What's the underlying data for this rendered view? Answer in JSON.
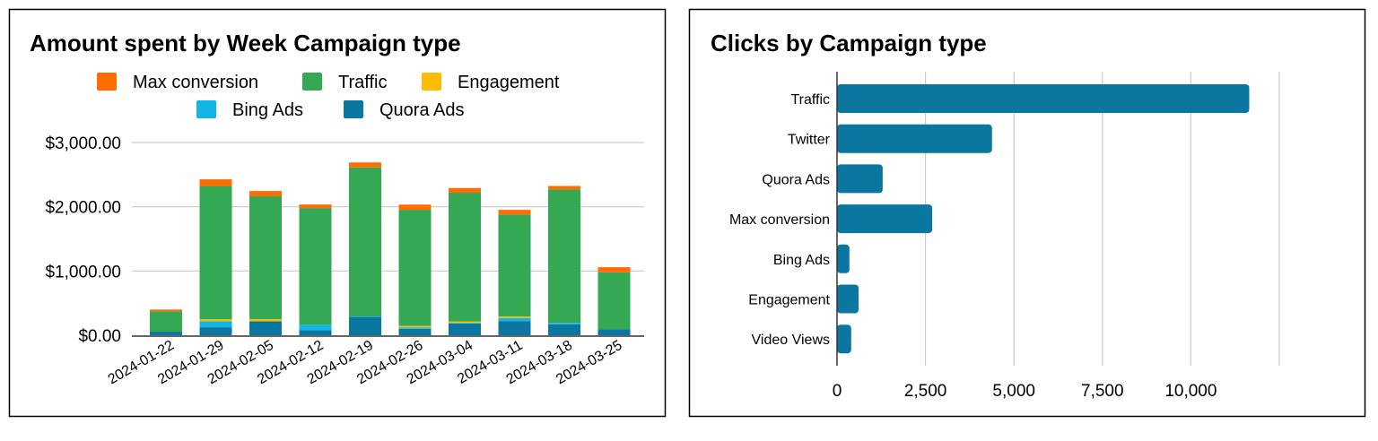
{
  "chart_data": [
    {
      "type": "bar",
      "stacked": true,
      "title": "Amount spent by Week Campaign type",
      "categories": [
        "2024-01-22",
        "2024-01-29",
        "2024-02-05",
        "2024-02-12",
        "2024-02-19",
        "2024-02-26",
        "2024-03-04",
        "2024-03-11",
        "2024-03-18",
        "2024-03-25"
      ],
      "yticks": [
        "$0.00",
        "$1,000.00",
        "$2,000.00",
        "$3,000.00"
      ],
      "ylim": [
        0,
        3000
      ],
      "grid": true,
      "legend_position": "top",
      "series": [
        {
          "name": "Quora Ads",
          "color": "#0b76a0",
          "values": [
            55,
            124,
            216,
            78,
            285,
            100,
            183,
            216,
            170,
            92
          ]
        },
        {
          "name": "Bing Ads",
          "color": "#12b5e6",
          "values": [
            0,
            92,
            0,
            87,
            8,
            23,
            9,
            54,
            22,
            0
          ]
        },
        {
          "name": "Engagement",
          "color": "#fbbc04",
          "values": [
            0,
            32,
            36,
            0,
            0,
            24,
            24,
            23,
            0,
            0
          ]
        },
        {
          "name": "Traffic",
          "color": "#34a853",
          "values": [
            316,
            2076,
            1911,
            1815,
            2319,
            1805,
            2002,
            1587,
            2077,
            888
          ]
        },
        {
          "name": "Max conversion",
          "color": "#ff6d01",
          "values": [
            29,
            103,
            82,
            55,
            78,
            82,
            74,
            72,
            55,
            79
          ]
        }
      ],
      "legend_order": [
        "Max conversion",
        "Traffic",
        "Engagement",
        "Bing Ads",
        "Quora Ads"
      ]
    },
    {
      "type": "bar",
      "orientation": "horizontal",
      "title": "Clicks by Campaign type",
      "categories": [
        "Traffic",
        "Twitter",
        "Quora Ads",
        "Max conversion",
        "Bing Ads",
        "Engagement",
        "Video Views"
      ],
      "values": [
        11650,
        4380,
        1290,
        2690,
        350,
        610,
        400
      ],
      "color": "#0b76a0",
      "xticks": [
        "0",
        "2,500",
        "5,000",
        "7,500",
        "10,000"
      ],
      "xlim": [
        0,
        12500
      ],
      "grid": true
    }
  ]
}
